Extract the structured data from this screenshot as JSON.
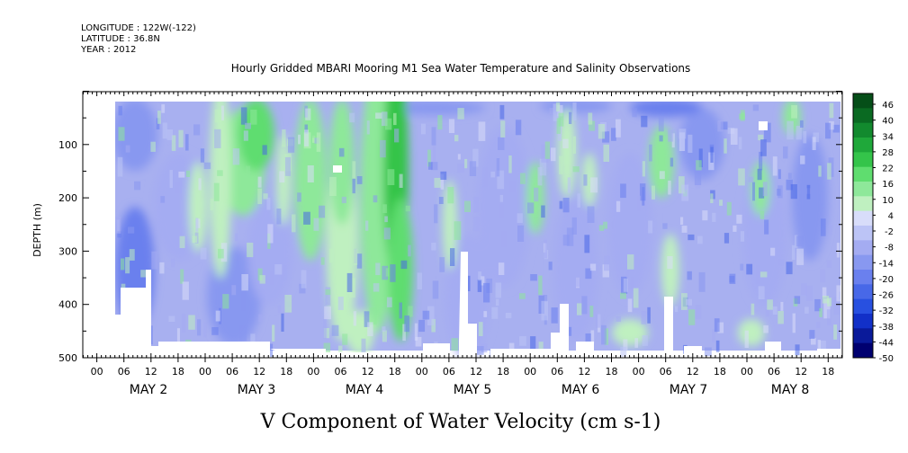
{
  "header": {
    "longitude": "LONGITUDE : 122W(-122)",
    "latitude": "LATITUDE : 36.8N",
    "year": "YEAR : 2012"
  },
  "chart_data": {
    "type": "heatmap",
    "title": "Hourly Gridded MBARI Mooring M1 Sea Water Temperature and Salinity Observations",
    "variable_title": "V Component of Water Velocity (cm s-1)",
    "ylabel": "DEPTH (m)",
    "ylim": [
      500,
      0
    ],
    "y_ticks": [
      100,
      200,
      300,
      400,
      500
    ],
    "x_hour_ticks": [
      "00",
      "06",
      "12",
      "18",
      "00",
      "06",
      "12",
      "18",
      "00",
      "06",
      "12",
      "18",
      "00",
      "06",
      "12",
      "18",
      "00",
      "06",
      "12",
      "18",
      "00",
      "06",
      "12",
      "18",
      "00",
      "06",
      "12",
      "18"
    ],
    "x_dates": [
      "MAY 2",
      "MAY 3",
      "MAY 4",
      "MAY 5",
      "MAY 6",
      "MAY 7",
      "MAY 8"
    ],
    "colorbar": {
      "labels": [
        "46",
        "40",
        "34",
        "28",
        "22",
        "16",
        "10",
        "4",
        "-2",
        "-8",
        "-14",
        "-20",
        "-26",
        "-32",
        "-38",
        "-44",
        "-50"
      ],
      "range": [
        -50,
        50
      ],
      "colors": [
        "#000070",
        "#0a1a9a",
        "#1230c8",
        "#2850e0",
        "#4868e8",
        "#6a80ee",
        "#8898f0",
        "#a4acf2",
        "#bcc4f6",
        "#d8ddfa",
        "#bff0c0",
        "#8ee89a",
        "#5fdd6f",
        "#34c44a",
        "#1fa83a",
        "#128a2e",
        "#0a6a22",
        "#054e18"
      ]
    },
    "field_notes": {
      "mean_sign": "predominantly negative (southward) with intermittent positive bands",
      "positive_bands_days": [
        "MAY 2 18h-MAY 3 06h",
        "MAY 4 00h-MAY 4 20h",
        "MAY 6 06h",
        "MAY 7 06h",
        "MAY 8 06h"
      ]
    }
  }
}
